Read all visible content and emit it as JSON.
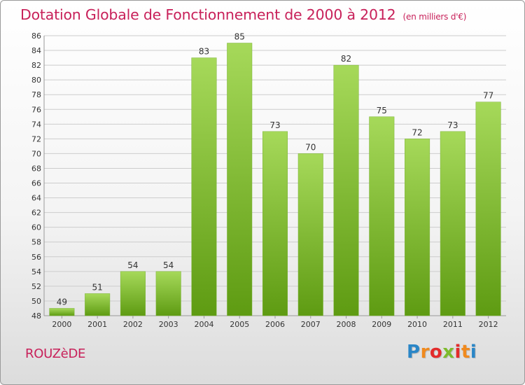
{
  "header": {
    "title": "Dotation Globale de Fonctionnement de 2000 à 2012",
    "subtitle": "(en milliers d'€)"
  },
  "footer": {
    "commune": "ROUZèDE",
    "logo_letters": [
      "P",
      "r",
      "o",
      "x",
      "i",
      "t",
      "i"
    ],
    "logo_colors": [
      "#2a86c7",
      "#f08a1e",
      "#e32b2b",
      "#7dbb2d",
      "#e32b2b",
      "#f08a1e",
      "#2a86c7"
    ]
  },
  "colors": {
    "title": "#c8215a",
    "bar_light": "#a6d95a",
    "bar_dark": "#5e9b12",
    "grid": "#cccccc",
    "axis_text": "#333333"
  },
  "chart_data": {
    "type": "bar",
    "title": "Dotation Globale de Fonctionnement de 2000 à 2012",
    "xlabel": "",
    "ylabel": "",
    "categories": [
      "2000",
      "2001",
      "2002",
      "2003",
      "2004",
      "2005",
      "2006",
      "2007",
      "2008",
      "2009",
      "2010",
      "2011",
      "2012"
    ],
    "values": [
      49,
      51,
      54,
      54,
      83,
      85,
      73,
      70,
      82,
      75,
      72,
      73,
      77
    ],
    "ylim": [
      48,
      86
    ],
    "ytick_step": 2,
    "grid": true
  }
}
